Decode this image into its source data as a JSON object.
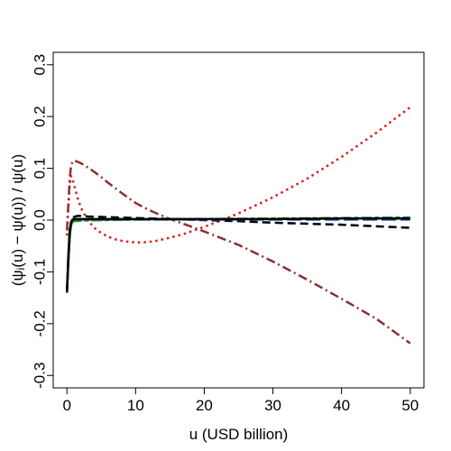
{
  "chart_data": {
    "type": "line",
    "xlabel": "u  (USD billion)",
    "ylabel": "(ψ",
    "ylabel_sub": "i",
    "ylabel_rest": "(u) − ψ(u)) / ψ(u)",
    "xlim": [
      0,
      50
    ],
    "ylim": [
      -0.3,
      0.3
    ],
    "x_ticks": [
      0,
      10,
      20,
      30,
      40,
      50
    ],
    "y_ticks": [
      -0.3,
      -0.2,
      -0.1,
      0.0,
      0.1,
      0.2,
      0.3
    ],
    "x_tick_labels": [
      "0",
      "10",
      "20",
      "30",
      "40",
      "50"
    ],
    "y_tick_labels": [
      "-0.3",
      "-0.2",
      "-0.1",
      "0.0",
      "0.1",
      "0.2",
      "0.3"
    ],
    "grid": false,
    "series": [
      {
        "color": "#dd1c1c",
        "dash": "dotted",
        "points": [
          [
            0,
            -0.03
          ],
          [
            0.2,
            0.02
          ],
          [
            0.4,
            0.07
          ],
          [
            0.6,
            0.085
          ],
          [
            0.8,
            0.08
          ],
          [
            1,
            0.07
          ],
          [
            1.5,
            0.045
          ],
          [
            2,
            0.025
          ],
          [
            3,
            0.0
          ],
          [
            4,
            -0.015
          ],
          [
            5,
            -0.025
          ],
          [
            6,
            -0.032
          ],
          [
            7,
            -0.037
          ],
          [
            8,
            -0.04
          ],
          [
            9,
            -0.042
          ],
          [
            10,
            -0.043
          ],
          [
            11,
            -0.043
          ],
          [
            12,
            -0.042
          ],
          [
            13,
            -0.04
          ],
          [
            14,
            -0.037
          ],
          [
            15,
            -0.034
          ],
          [
            17,
            -0.027
          ],
          [
            20,
            -0.013
          ],
          [
            22,
            -0.003
          ],
          [
            25,
            0.013
          ],
          [
            30,
            0.044
          ],
          [
            35,
            0.08
          ],
          [
            40,
            0.122
          ],
          [
            45,
            0.168
          ],
          [
            50,
            0.218
          ]
        ]
      },
      {
        "color": "#8c2f2f",
        "dash": "dashdot",
        "points": [
          [
            0,
            -0.02
          ],
          [
            0.2,
            0.03
          ],
          [
            0.4,
            0.08
          ],
          [
            0.6,
            0.105
          ],
          [
            0.8,
            0.112
          ],
          [
            1,
            0.115
          ],
          [
            1.5,
            0.113
          ],
          [
            2,
            0.11
          ],
          [
            3,
            0.102
          ],
          [
            4,
            0.093
          ],
          [
            5,
            0.083
          ],
          [
            6,
            0.072
          ],
          [
            8,
            0.052
          ],
          [
            10,
            0.033
          ],
          [
            12,
            0.019
          ],
          [
            15,
            0.002
          ],
          [
            18,
            -0.012
          ],
          [
            20,
            -0.022
          ],
          [
            25,
            -0.048
          ],
          [
            30,
            -0.08
          ],
          [
            35,
            -0.115
          ],
          [
            40,
            -0.152
          ],
          [
            45,
            -0.19
          ],
          [
            50,
            -0.238
          ]
        ]
      },
      {
        "color": "#000000",
        "dash": "dashed",
        "points": [
          [
            0,
            -0.14
          ],
          [
            0.2,
            -0.08
          ],
          [
            0.4,
            -0.03
          ],
          [
            0.6,
            -0.005
          ],
          [
            0.8,
            0.003
          ],
          [
            1,
            0.006
          ],
          [
            1.5,
            0.008
          ],
          [
            2,
            0.008
          ],
          [
            3,
            0.007
          ],
          [
            5,
            0.006
          ],
          [
            10,
            0.004
          ],
          [
            15,
            0.002
          ],
          [
            20,
            0.0
          ],
          [
            25,
            -0.002
          ],
          [
            30,
            -0.005
          ],
          [
            35,
            -0.007
          ],
          [
            40,
            -0.009
          ],
          [
            45,
            -0.012
          ],
          [
            50,
            -0.015
          ]
        ]
      },
      {
        "color": "#1f3fd6",
        "dash": "longdash",
        "points": [
          [
            0,
            -0.135
          ],
          [
            0.2,
            -0.08
          ],
          [
            0.4,
            -0.03
          ],
          [
            0.6,
            -0.01
          ],
          [
            0.8,
            -0.002
          ],
          [
            1,
            0.0
          ],
          [
            2,
            0.001
          ],
          [
            5,
            0.001
          ],
          [
            10,
            0.001
          ],
          [
            20,
            0.001
          ],
          [
            30,
            0.001
          ],
          [
            40,
            0.001
          ],
          [
            50,
            0.001
          ]
        ]
      },
      {
        "color": "#1a8a1a",
        "dash": "twodash",
        "points": [
          [
            0,
            -0.14
          ],
          [
            0.2,
            -0.085
          ],
          [
            0.4,
            -0.035
          ],
          [
            0.6,
            -0.012
          ],
          [
            0.8,
            -0.004
          ],
          [
            1,
            -0.002
          ],
          [
            2,
            -0.001
          ],
          [
            5,
            0.0
          ],
          [
            10,
            0.001
          ],
          [
            20,
            0.002
          ],
          [
            30,
            0.003
          ],
          [
            40,
            0.004
          ],
          [
            50,
            0.005
          ]
        ]
      },
      {
        "color": "#000000",
        "dash": "solid",
        "points": [
          [
            0,
            -0.14
          ],
          [
            0.2,
            -0.07
          ],
          [
            0.4,
            -0.02
          ],
          [
            0.6,
            -0.004
          ],
          [
            0.8,
            0.001
          ],
          [
            1,
            0.002
          ],
          [
            2,
            0.002
          ],
          [
            5,
            0.002
          ],
          [
            10,
            0.002
          ],
          [
            20,
            0.002
          ],
          [
            30,
            0.002
          ],
          [
            40,
            0.003
          ],
          [
            50,
            0.003
          ]
        ]
      }
    ]
  }
}
